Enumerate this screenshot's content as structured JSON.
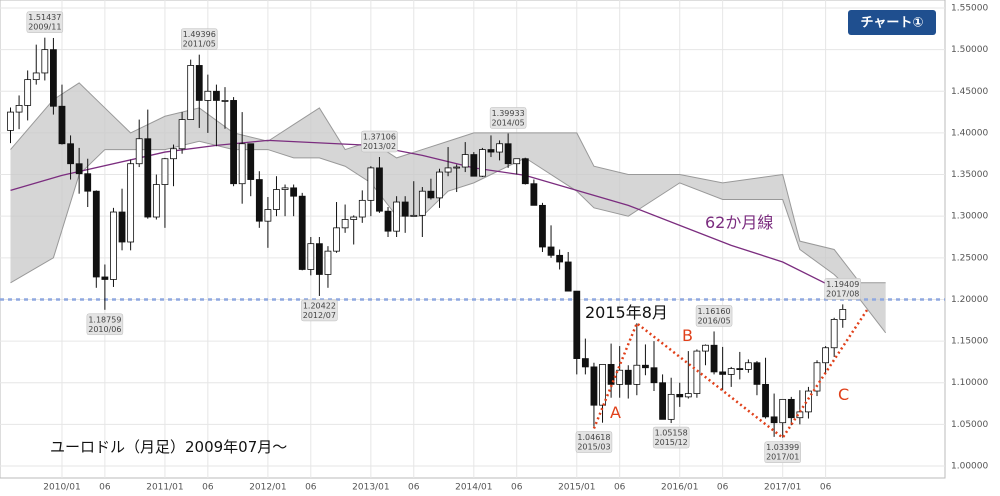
{
  "chart_data": {
    "type": "candlestick",
    "title": "ユーロドル（月足）2009年07月～",
    "badge": "チャート①",
    "x": [
      "2009/07",
      "2009/08",
      "2009/09",
      "2009/10",
      "2009/11",
      "2009/12",
      "2010/01",
      "2010/02",
      "2010/03",
      "2010/04",
      "2010/05",
      "2010/06",
      "2010/07",
      "2010/08",
      "2010/09",
      "2010/10",
      "2010/11",
      "2010/12",
      "2011/01",
      "2011/02",
      "2011/03",
      "2011/04",
      "2011/05",
      "2011/06",
      "2011/07",
      "2011/08",
      "2011/09",
      "2011/10",
      "2011/11",
      "2011/12",
      "2012/01",
      "2012/02",
      "2012/03",
      "2012/04",
      "2012/05",
      "2012/06",
      "2012/07",
      "2012/08",
      "2012/09",
      "2012/10",
      "2012/11",
      "2012/12",
      "2013/01",
      "2013/02",
      "2013/03",
      "2013/04",
      "2013/05",
      "2013/06",
      "2013/07",
      "2013/08",
      "2013/09",
      "2013/10",
      "2013/11",
      "2013/12",
      "2014/01",
      "2014/02",
      "2014/03",
      "2014/04",
      "2014/05",
      "2014/06",
      "2014/07",
      "2014/08",
      "2014/09",
      "2014/10",
      "2014/11",
      "2014/12",
      "2015/01",
      "2015/02",
      "2015/03",
      "2015/04",
      "2015/05",
      "2015/06",
      "2015/07",
      "2015/08",
      "2015/09",
      "2015/10",
      "2015/11",
      "2015/12",
      "2016/01",
      "2016/02",
      "2016/03",
      "2016/04",
      "2016/05",
      "2016/06",
      "2016/07",
      "2016/08",
      "2016/09",
      "2016/10",
      "2016/11",
      "2016/12",
      "2017/01",
      "2017/02",
      "2017/03",
      "2017/04",
      "2017/05",
      "2017/06",
      "2017/07",
      "2017/08"
    ],
    "open": [
      1.403,
      1.425,
      1.433,
      1.464,
      1.472,
      1.5,
      1.432,
      1.387,
      1.363,
      1.351,
      1.33,
      1.227,
      1.224,
      1.305,
      1.269,
      1.363,
      1.393,
      1.299,
      1.338,
      1.369,
      1.381,
      1.416,
      1.481,
      1.439,
      1.45,
      1.439,
      1.439,
      1.339,
      1.387,
      1.344,
      1.294,
      1.308,
      1.332,
      1.334,
      1.324,
      1.236,
      1.267,
      1.23,
      1.258,
      1.286,
      1.296,
      1.299,
      1.319,
      1.358,
      1.306,
      1.282,
      1.317,
      1.3,
      1.301,
      1.33,
      1.322,
      1.353,
      1.358,
      1.359,
      1.374,
      1.348,
      1.38,
      1.377,
      1.387,
      1.363,
      1.369,
      1.339,
      1.313,
      1.263,
      1.253,
      1.245,
      1.21,
      1.129,
      1.119,
      1.073,
      1.122,
      1.098,
      1.115,
      1.098,
      1.121,
      1.118,
      1.1,
      1.056,
      1.086,
      1.083,
      1.087,
      1.138,
      1.145,
      1.113,
      1.11,
      1.117,
      1.116,
      1.124,
      1.098,
      1.059,
      1.052,
      1.08,
      1.058,
      1.065,
      1.09,
      1.124,
      1.142,
      1.176
    ],
    "high": [
      1.4305,
      1.445,
      1.475,
      1.506,
      1.51437,
      1.514,
      1.458,
      1.397,
      1.382,
      1.369,
      1.331,
      1.242,
      1.31,
      1.333,
      1.368,
      1.416,
      1.428,
      1.35,
      1.37,
      1.386,
      1.425,
      1.488,
      1.49396,
      1.47,
      1.458,
      1.455,
      1.443,
      1.425,
      1.387,
      1.354,
      1.323,
      1.348,
      1.338,
      1.338,
      1.328,
      1.275,
      1.275,
      1.264,
      1.317,
      1.314,
      1.301,
      1.331,
      1.36,
      1.37106,
      1.311,
      1.324,
      1.324,
      1.342,
      1.335,
      1.345,
      1.357,
      1.383,
      1.362,
      1.389,
      1.377,
      1.382,
      1.397,
      1.391,
      1.39933,
      1.368,
      1.37,
      1.344,
      1.316,
      1.289,
      1.26,
      1.257,
      1.21,
      1.153,
      1.124,
      1.122,
      1.147,
      1.144,
      1.121,
      1.1714,
      1.146,
      1.15,
      1.11,
      1.106,
      1.1,
      1.138,
      1.14,
      1.146,
      1.1616,
      1.143,
      1.119,
      1.137,
      1.128,
      1.126,
      1.13,
      1.087,
      1.077,
      1.083,
      1.091,
      1.095,
      1.127,
      1.144,
      1.178,
      1.19409
    ],
    "low": [
      1.3878,
      1.4045,
      1.415,
      1.458,
      1.463,
      1.422,
      1.386,
      1.344,
      1.327,
      1.311,
      1.214,
      1.18759,
      1.215,
      1.259,
      1.259,
      1.359,
      1.297,
      1.296,
      1.286,
      1.336,
      1.375,
      1.416,
      1.406,
      1.4,
      1.384,
      1.405,
      1.336,
      1.315,
      1.324,
      1.286,
      1.262,
      1.3,
      1.3,
      1.3,
      1.235,
      1.229,
      1.20422,
      1.214,
      1.256,
      1.28,
      1.266,
      1.292,
      1.3,
      1.304,
      1.275,
      1.275,
      1.28,
      1.3,
      1.275,
      1.32,
      1.31,
      1.348,
      1.329,
      1.353,
      1.348,
      1.347,
      1.371,
      1.367,
      1.358,
      1.35,
      1.338,
      1.314,
      1.257,
      1.25,
      1.236,
      1.21,
      1.11,
      1.11,
      1.04618,
      1.052,
      1.082,
      1.082,
      1.081,
      1.085,
      1.109,
      1.09,
      1.056,
      1.05158,
      1.071,
      1.081,
      1.082,
      1.121,
      1.11,
      1.091,
      1.095,
      1.104,
      1.112,
      1.085,
      1.057,
      1.035,
      1.03399,
      1.049,
      1.05,
      1.057,
      1.084,
      1.112,
      1.131,
      1.166
    ],
    "close": [
      1.425,
      1.433,
      1.464,
      1.472,
      1.5,
      1.432,
      1.387,
      1.363,
      1.351,
      1.33,
      1.227,
      1.224,
      1.305,
      1.269,
      1.363,
      1.393,
      1.299,
      1.338,
      1.369,
      1.381,
      1.416,
      1.481,
      1.439,
      1.45,
      1.439,
      1.439,
      1.339,
      1.387,
      1.344,
      1.294,
      1.308,
      1.332,
      1.334,
      1.324,
      1.236,
      1.267,
      1.23,
      1.258,
      1.286,
      1.296,
      1.299,
      1.319,
      1.358,
      1.306,
      1.282,
      1.317,
      1.3,
      1.301,
      1.33,
      1.322,
      1.353,
      1.358,
      1.359,
      1.374,
      1.348,
      1.38,
      1.377,
      1.387,
      1.363,
      1.369,
      1.339,
      1.313,
      1.263,
      1.253,
      1.245,
      1.21,
      1.129,
      1.119,
      1.073,
      1.122,
      1.098,
      1.115,
      1.098,
      1.121,
      1.118,
      1.1,
      1.056,
      1.086,
      1.083,
      1.087,
      1.138,
      1.145,
      1.113,
      1.11,
      1.117,
      1.116,
      1.124,
      1.098,
      1.059,
      1.052,
      1.08,
      1.058,
      1.065,
      1.09,
      1.124,
      1.142,
      1.176,
      1.188
    ],
    "up_color": "#ffffff",
    "down_color": "#111111",
    "ylim": [
      1.0,
      1.55
    ],
    "yticks": [
      {
        "value": 1.0,
        "label": "1.00000"
      },
      {
        "value": 1.05,
        "label": "1.05000"
      },
      {
        "value": 1.1,
        "label": "1.10000"
      },
      {
        "value": 1.15,
        "label": "1.15000"
      },
      {
        "value": 1.2,
        "label": "1.20000"
      },
      {
        "value": 1.25,
        "label": "1.25000"
      },
      {
        "value": 1.3,
        "label": "1.30000"
      },
      {
        "value": 1.35,
        "label": "1.35000"
      },
      {
        "value": 1.4,
        "label": "1.40000"
      },
      {
        "value": 1.45,
        "label": "1.45000"
      },
      {
        "value": 1.5,
        "label": "1.50000"
      },
      {
        "value": 1.55,
        "label": "1.55000"
      }
    ],
    "xticks": [
      "2010/01",
      {
        "value": "2010/06",
        "label": "06"
      },
      "2011/01",
      {
        "value": "2011/06",
        "label": "06"
      },
      "2012/01",
      {
        "value": "2012/06",
        "label": "06"
      },
      "2013/01",
      {
        "value": "2013/06",
        "label": "06"
      },
      "2014/01",
      {
        "value": "2014/06",
        "label": "06"
      },
      "2015/01",
      {
        "value": "2015/06",
        "label": "06"
      },
      "2016/01",
      {
        "value": "2016/06",
        "label": "06"
      },
      "2017/01",
      {
        "value": "2017/06",
        "label": "06"
      }
    ],
    "grid": true,
    "annotations": [
      {
        "x": "2009/11",
        "value": 1.51437
      },
      {
        "x": "2010/06",
        "value": 1.18759
      },
      {
        "x": "2011/05",
        "value": 1.49396
      },
      {
        "x": "2012/07",
        "value": 1.20422
      },
      {
        "x": "2013/02",
        "value": 1.37106
      },
      {
        "x": "2014/05",
        "value": 1.39933
      },
      {
        "x": "2015/03",
        "value": 1.04618
      },
      {
        "x": "2015/12",
        "value": 1.05158
      },
      {
        "x": "2016/05",
        "value": {
          "value": 1.1616,
          "label": "1.16160"
        }
      },
      {
        "x": "2017/01",
        "value": 1.03399
      },
      {
        "x": "2017/08",
        "value": 1.19409
      }
    ],
    "moving_average": {
      "name": "62か月線",
      "color": "#7b2d7f",
      "x": [
        "2009/07",
        "2010/01",
        "2011/01",
        "2011/07",
        "2012/01",
        "2013/01",
        "2013/07",
        "2014/01",
        "2014/07",
        "2015/01",
        "2015/07",
        "2016/01",
        "2016/07",
        "2017/01",
        "2017/08"
      ],
      "values": [
        1.331,
        1.349,
        1.377,
        1.385,
        1.391,
        1.385,
        1.373,
        1.358,
        1.349,
        1.331,
        1.313,
        1.289,
        1.265,
        1.245,
        1.209
      ]
    },
    "cloud": {
      "color": "#c8c8c8",
      "x": [
        "2009/07",
        "2009/12",
        "2010/03",
        "2010/06",
        "2010/09",
        "2011/01",
        "2011/05",
        "2011/09",
        "2012/01",
        "2012/04",
        "2012/07",
        "2012/10",
        "2013/01",
        "2013/04",
        "2013/07",
        "2013/10",
        "2014/01",
        "2014/07",
        "2015/01",
        "2015/03",
        "2015/07",
        "2016/01",
        "2016/06",
        "2017/01",
        "2017/03",
        "2017/07",
        "2017/10",
        "2018/01"
      ],
      "upper": [
        1.38,
        1.44,
        1.46,
        1.43,
        1.4,
        1.42,
        1.43,
        1.4,
        1.39,
        1.41,
        1.43,
        1.38,
        1.39,
        1.37,
        1.38,
        1.39,
        1.4,
        1.4,
        1.4,
        1.36,
        1.35,
        1.35,
        1.34,
        1.35,
        1.27,
        1.26,
        1.22,
        1.22
      ],
      "lower": [
        1.22,
        1.25,
        1.35,
        1.38,
        1.38,
        1.38,
        1.39,
        1.38,
        1.38,
        1.37,
        1.37,
        1.36,
        1.34,
        1.3,
        1.3,
        1.33,
        1.34,
        1.37,
        1.33,
        1.31,
        1.3,
        1.34,
        1.32,
        1.32,
        1.26,
        1.23,
        1.2,
        1.16
      ]
    },
    "reference_line": {
      "value": 1.2,
      "color": "#8fa8e0"
    },
    "trendline": {
      "color": "#e0401a",
      "x": [
        "2015/03",
        "2015/08",
        "2017/01",
        "2017/11"
      ],
      "values": [
        1.045,
        1.1714,
        1.034,
        1.19
      ]
    },
    "texts": {
      "ma_label": "62か月線",
      "month_label": "2015年8月",
      "a": "A",
      "b": "B",
      "c": "C"
    }
  }
}
